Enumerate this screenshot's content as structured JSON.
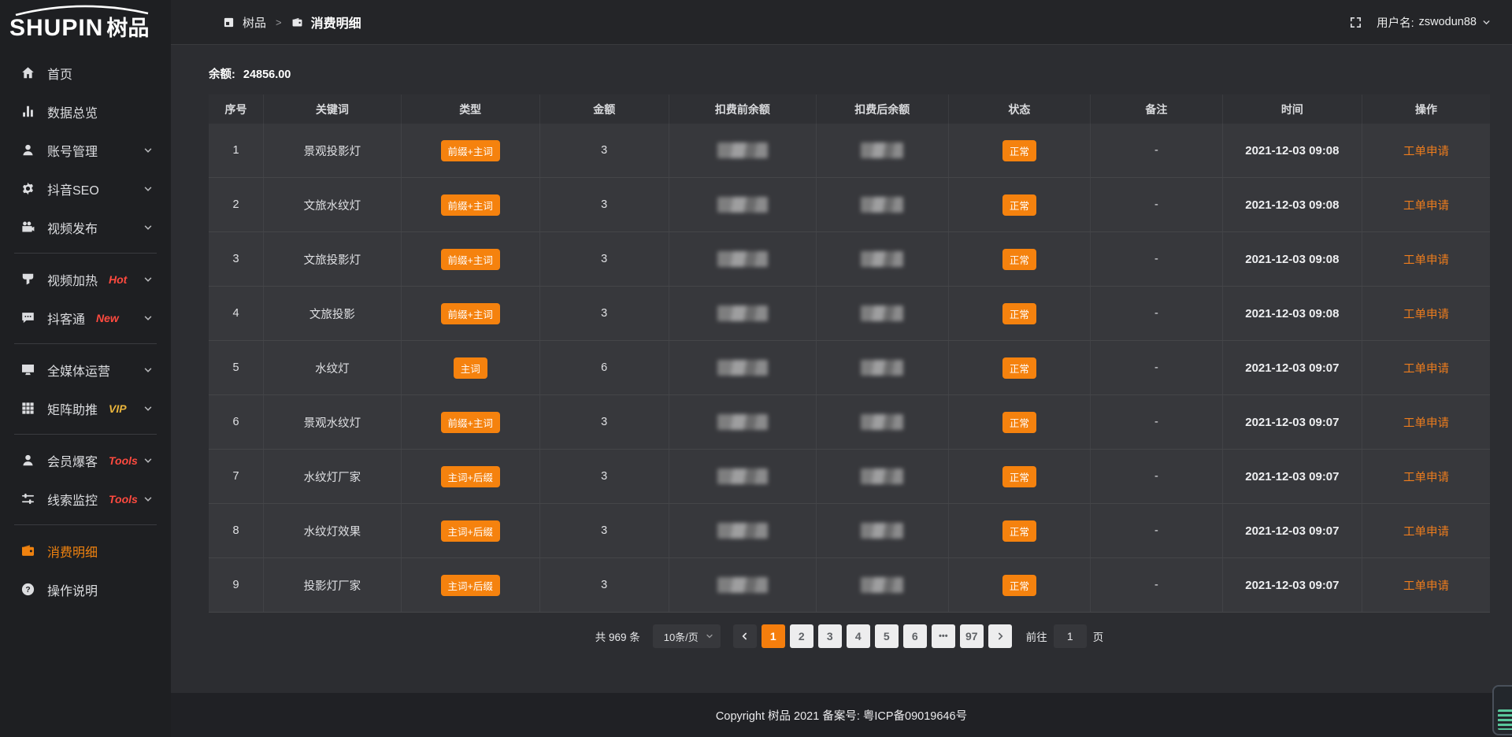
{
  "colors": {
    "accent_orange": "#f5820e",
    "hot_red": "#ff4a3f",
    "vip_gold": "#e9b43c"
  },
  "brand": {
    "logo_en": "SHUPIN",
    "logo_cn": "树品"
  },
  "topbar": {
    "breadcrumb": {
      "root": "树品",
      "separator": ">",
      "current": "消费明细"
    },
    "username_label": "用户名:",
    "username": "zswodun88"
  },
  "sidebar": {
    "items": [
      {
        "id": "home",
        "label": "首页",
        "icon": "home-icon"
      },
      {
        "id": "data-overview",
        "label": "数据总览",
        "icon": "bar-chart-icon"
      },
      {
        "id": "account-manage",
        "label": "账号管理",
        "icon": "user-icon",
        "chevron": true
      },
      {
        "id": "douyin-seo",
        "label": "抖音SEO",
        "icon": "gear-icon",
        "chevron": true
      },
      {
        "id": "video-publish",
        "label": "视频发布",
        "icon": "video-camera-icon",
        "chevron": true,
        "divider_after": true
      },
      {
        "id": "video-heat",
        "label": "视频加热",
        "icon": "heat-icon",
        "tag": "Hot",
        "tag_color": "#ff4a3f",
        "chevron": true
      },
      {
        "id": "douketong",
        "label": "抖客通",
        "icon": "chat-icon",
        "tag": "New",
        "tag_color": "#ff4a3f",
        "chevron": true,
        "divider_after": true
      },
      {
        "id": "media-ops",
        "label": "全媒体运营",
        "icon": "monitor-icon",
        "chevron": true
      },
      {
        "id": "matrix-boost",
        "label": "矩阵助推",
        "icon": "grid-icon",
        "tag": "VIP",
        "tag_color": "#e9b43c",
        "chevron": true,
        "divider_after": true
      },
      {
        "id": "member-boom",
        "label": "会员爆客",
        "icon": "member-icon",
        "tag": "Tools",
        "tag_color": "#ff4a3f",
        "chevron": true
      },
      {
        "id": "clue-monitor",
        "label": "线索监控",
        "icon": "sliders-icon",
        "tag": "Tools",
        "tag_color": "#ff4a3f",
        "chevron": true,
        "divider_after": true
      },
      {
        "id": "consume-detail",
        "label": "消费明细",
        "icon": "wallet-icon",
        "active": true
      },
      {
        "id": "help",
        "label": "操作说明",
        "icon": "question-icon"
      }
    ]
  },
  "main": {
    "balance_label": "余额:",
    "balance_value": "24856.00"
  },
  "table": {
    "columns": [
      "序号",
      "关键词",
      "类型",
      "金额",
      "扣费前余额",
      "扣费后余额",
      "状态",
      "备注",
      "时间",
      "操作"
    ],
    "rows": [
      {
        "index": "1",
        "keyword": "景观投影灯",
        "type": "前缀+主词",
        "amount": "3",
        "pre_balance_masked": true,
        "post_balance_masked": true,
        "status": "正常",
        "note": "-",
        "time": "2021-12-03 09:08",
        "action": "工单申请"
      },
      {
        "index": "2",
        "keyword": "文旅水纹灯",
        "type": "前缀+主词",
        "amount": "3",
        "pre_balance_masked": true,
        "post_balance_masked": true,
        "status": "正常",
        "note": "-",
        "time": "2021-12-03 09:08",
        "action": "工单申请"
      },
      {
        "index": "3",
        "keyword": "文旅投影灯",
        "type": "前缀+主词",
        "amount": "3",
        "pre_balance_masked": true,
        "post_balance_masked": true,
        "status": "正常",
        "note": "-",
        "time": "2021-12-03 09:08",
        "action": "工单申请"
      },
      {
        "index": "4",
        "keyword": "文旅投影",
        "type": "前缀+主词",
        "amount": "3",
        "pre_balance_masked": true,
        "post_balance_masked": true,
        "status": "正常",
        "note": "-",
        "time": "2021-12-03 09:08",
        "action": "工单申请"
      },
      {
        "index": "5",
        "keyword": "水纹灯",
        "type": "主词",
        "amount": "6",
        "pre_balance_masked": true,
        "post_balance_masked": true,
        "status": "正常",
        "note": "-",
        "time": "2021-12-03 09:07",
        "action": "工单申请"
      },
      {
        "index": "6",
        "keyword": "景观水纹灯",
        "type": "前缀+主词",
        "amount": "3",
        "pre_balance_masked": true,
        "post_balance_masked": true,
        "status": "正常",
        "note": "-",
        "time": "2021-12-03 09:07",
        "action": "工单申请"
      },
      {
        "index": "7",
        "keyword": "水纹灯厂家",
        "type": "主词+后缀",
        "amount": "3",
        "pre_balance_masked": true,
        "post_balance_masked": true,
        "status": "正常",
        "note": "-",
        "time": "2021-12-03 09:07",
        "action": "工单申请"
      },
      {
        "index": "8",
        "keyword": "水纹灯效果",
        "type": "主词+后缀",
        "amount": "3",
        "pre_balance_masked": true,
        "post_balance_masked": true,
        "status": "正常",
        "note": "-",
        "time": "2021-12-03 09:07",
        "action": "工单申请"
      },
      {
        "index": "9",
        "keyword": "投影灯厂家",
        "type": "主词+后缀",
        "amount": "3",
        "pre_balance_masked": true,
        "post_balance_masked": true,
        "status": "正常",
        "note": "-",
        "time": "2021-12-03 09:07",
        "action": "工单申请"
      }
    ]
  },
  "pagination": {
    "total": "共 969 条",
    "page_size": "10条/页",
    "pages": [
      "1",
      "2",
      "3",
      "4",
      "5",
      "6",
      "•••",
      "97"
    ],
    "active_page": "1",
    "goto_label": "前往",
    "goto_value": "1",
    "goto_unit": "页"
  },
  "footer": {
    "copyright": "Copyright 树品 2021 备案号: 粤ICP备09019646号"
  }
}
